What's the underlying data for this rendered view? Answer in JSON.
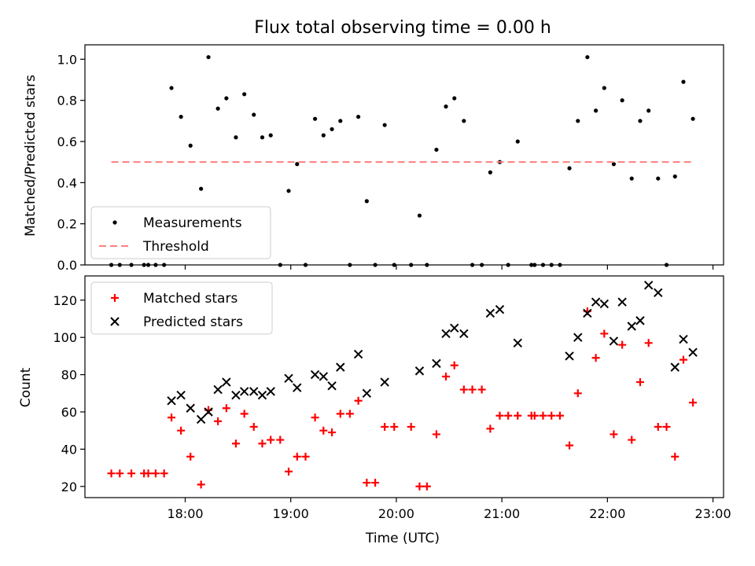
{
  "chart_data": {
    "title": "Flux total observing time = 0.00 h",
    "x_tick_labels": [
      "18:00",
      "19:00",
      "20:00",
      "21:00",
      "22:00",
      "23:00"
    ],
    "x_tick_hours": [
      18,
      19,
      20,
      21,
      22,
      23
    ],
    "xlabel": "Time (UTC)",
    "xlim_hours": [
      17.05,
      23.1
    ],
    "panels": [
      {
        "type": "scatter",
        "ylabel": "Matched/Predicted stars",
        "ylim": [
          0,
          1.07
        ],
        "y_ticks": [
          0.0,
          0.2,
          0.4,
          0.6,
          0.8,
          1.0
        ],
        "y_tick_labels": [
          "0.0",
          "0.2",
          "0.4",
          "0.6",
          "0.8",
          "1.0"
        ],
        "legend": {
          "placement": "lower-left",
          "entries": [
            "Measurements",
            "Threshold"
          ]
        },
        "series": [
          {
            "name": "Measurements",
            "marker": "dot",
            "color": "#000000",
            "x_hours": [
              17.87,
              17.96,
              18.05,
              18.15,
              18.22,
              18.31,
              18.39,
              18.48,
              18.56,
              18.65,
              18.73,
              18.81,
              18.98,
              19.06,
              19.23,
              19.31,
              19.39,
              19.47,
              19.64,
              19.72,
              19.89,
              20.22,
              20.38,
              20.47,
              20.55,
              20.64,
              20.89,
              20.98,
              21.15,
              21.64,
              21.72,
              21.81,
              21.89,
              21.97,
              22.06,
              22.14,
              22.23,
              22.31,
              22.39,
              22.48,
              22.64,
              22.72,
              22.81,
              17.3,
              17.38,
              17.49,
              17.61,
              17.65,
              17.72,
              17.8,
              18.9,
              19.14,
              19.56,
              19.8,
              19.98,
              20.14,
              20.29,
              20.72,
              20.81,
              21.06,
              21.28,
              21.31,
              21.39,
              21.47,
              21.55,
              22.56
            ],
            "y": [
              0.86,
              0.72,
              0.58,
              0.37,
              1.01,
              0.76,
              0.81,
              0.62,
              0.83,
              0.73,
              0.62,
              0.63,
              0.36,
              0.49,
              0.71,
              0.63,
              0.66,
              0.7,
              0.72,
              0.31,
              0.68,
              0.24,
              0.56,
              0.77,
              0.81,
              0.7,
              0.45,
              0.5,
              0.6,
              0.47,
              0.7,
              1.01,
              0.75,
              0.86,
              0.49,
              0.8,
              0.42,
              0.7,
              0.75,
              0.42,
              0.43,
              0.89,
              0.71,
              0.0,
              0.0,
              0.0,
              0.0,
              0.0,
              0.0,
              0.0,
              0.0,
              0.0,
              0.0,
              0.0,
              0.0,
              0.0,
              0.0,
              0.0,
              0.0,
              0.0,
              0.0,
              0.0,
              0.0,
              0.0,
              0.0,
              0.0
            ]
          },
          {
            "name": "Threshold",
            "style": "dashed",
            "color": "#ff7f7f",
            "x_hours": [
              17.3,
              22.81
            ],
            "y": [
              0.5,
              0.5
            ]
          }
        ]
      },
      {
        "type": "scatter",
        "ylabel": "Count",
        "ylim": [
          14,
          133
        ],
        "y_ticks": [
          20,
          40,
          60,
          80,
          100,
          120
        ],
        "y_tick_labels": [
          "20",
          "40",
          "60",
          "80",
          "100",
          "120"
        ],
        "legend": {
          "placement": "upper-left",
          "entries": [
            "Matched stars",
            "Predicted stars"
          ]
        },
        "series": [
          {
            "name": "Matched stars",
            "marker": "plus",
            "color": "#ff0000",
            "x_hours": [
              17.3,
              17.38,
              17.49,
              17.61,
              17.65,
              17.72,
              17.8,
              17.87,
              17.96,
              18.05,
              18.15,
              18.22,
              18.31,
              18.39,
              18.48,
              18.56,
              18.65,
              18.73,
              18.81,
              18.9,
              18.98,
              19.06,
              19.14,
              19.23,
              19.31,
              19.39,
              19.47,
              19.56,
              19.64,
              19.72,
              19.8,
              19.89,
              19.98,
              20.14,
              20.22,
              20.29,
              20.38,
              20.47,
              20.55,
              20.64,
              20.72,
              20.81,
              20.89,
              20.98,
              21.06,
              21.15,
              21.28,
              21.31,
              21.39,
              21.47,
              21.55,
              21.64,
              21.72,
              21.81,
              21.89,
              21.97,
              22.06,
              22.14,
              22.23,
              22.31,
              22.39,
              22.48,
              22.56,
              22.64,
              22.72,
              22.81
            ],
            "y": [
              27,
              27,
              27,
              27,
              27,
              27,
              27,
              57,
              50,
              36,
              21,
              61,
              55,
              62,
              43,
              59,
              52,
              43,
              45,
              45,
              28,
              36,
              36,
              57,
              50,
              49,
              59,
              59,
              66,
              22,
              22,
              52,
              52,
              52,
              20,
              20,
              48,
              79,
              85,
              72,
              72,
              72,
              51,
              58,
              58,
              58,
              58,
              58,
              58,
              58,
              58,
              42,
              70,
              114,
              89,
              102,
              48,
              96,
              45,
              76,
              97,
              52,
              52,
              36,
              88,
              65
            ]
          },
          {
            "name": "Predicted stars",
            "marker": "x",
            "color": "#000000",
            "x_hours": [
              17.87,
              17.96,
              18.05,
              18.15,
              18.22,
              18.31,
              18.39,
              18.48,
              18.56,
              18.65,
              18.73,
              18.81,
              18.98,
              19.06,
              19.23,
              19.31,
              19.39,
              19.47,
              19.64,
              19.72,
              19.89,
              20.22,
              20.38,
              20.47,
              20.55,
              20.64,
              20.89,
              20.98,
              21.15,
              21.64,
              21.72,
              21.81,
              21.89,
              21.97,
              22.06,
              22.14,
              22.23,
              22.31,
              22.39,
              22.48,
              22.64,
              22.72,
              22.81
            ],
            "y": [
              66,
              69,
              62,
              56,
              60,
              72,
              76,
              69,
              71,
              71,
              69,
              71,
              78,
              73,
              80,
              79,
              74,
              84,
              91,
              70,
              76,
              82,
              86,
              102,
              105,
              102,
              113,
              115,
              97,
              90,
              100,
              113,
              119,
              118,
              98,
              119,
              106,
              109,
              128,
              124,
              84,
              99,
              92
            ]
          }
        ]
      }
    ]
  }
}
